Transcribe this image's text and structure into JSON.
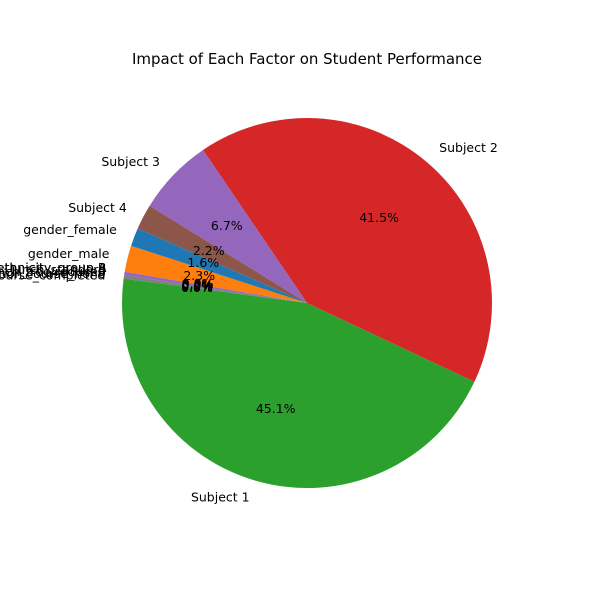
{
  "chart_data": {
    "type": "pie",
    "title": "Impact of Each Factor on Student Performance",
    "start_angle_deg": 162,
    "direction": "counterclockwise",
    "slices": [
      {
        "label": "gender_male",
        "percent": 2.3,
        "pct_label": "2.3%",
        "color": "#ff7f0e"
      },
      {
        "label": "race/ethnicity_group A",
        "percent": 0.0,
        "pct_label": "0.0%",
        "color": "#2ca02c"
      },
      {
        "label": "race/ethnicity_group B",
        "percent": 0.0,
        "pct_label": "0.0%",
        "color": "#d62728"
      },
      {
        "label": "lunch_standard",
        "percent": 0.3,
        "pct_label": "0.3%",
        "color": "#9467bd"
      },
      {
        "label": "lunch_free/reduced",
        "percent": 0.0,
        "pct_label": "0.0%",
        "color": "#8c564b"
      },
      {
        "label": "test preparation course_none",
        "percent": 0.3,
        "pct_label": "0.3%",
        "color": "#7f7f7f"
      },
      {
        "label": "test preparation course_completed",
        "percent": 0.0,
        "pct_label": "0.0%",
        "color": "#bcbd22"
      },
      {
        "label": "Subject 1",
        "percent": 45.1,
        "pct_label": "45.1%",
        "color": "#2ca02c"
      },
      {
        "label": "Subject 2",
        "percent": 41.5,
        "pct_label": "41.5%",
        "color": "#d62728"
      },
      {
        "label": "Subject 3",
        "percent": 6.7,
        "pct_label": "6.7%",
        "color": "#9467bd"
      },
      {
        "label": "Subject 4",
        "percent": 2.2,
        "pct_label": "2.2%",
        "color": "#8c564b"
      },
      {
        "label": "gender_female",
        "percent": 1.6,
        "pct_label": "1.6%",
        "color": "#1f77b4"
      }
    ],
    "legend": "none"
  }
}
